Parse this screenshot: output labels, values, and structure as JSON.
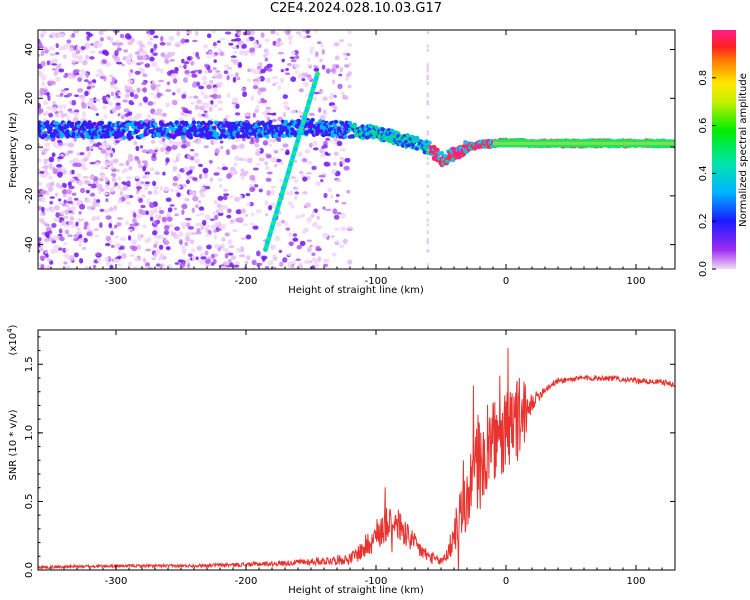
{
  "page": {
    "title": "C2E4.2024.028.10.03.G17"
  },
  "chart_data": [
    {
      "type": "heatmap",
      "title": "C2E4.2024.028.10.03.G17",
      "xlabel": "Height of straight line (km)",
      "ylabel": "Frequency (Hz)",
      "xlim": [
        -360,
        130
      ],
      "ylim": [
        -50,
        48
      ],
      "xticks": [
        -300,
        -200,
        -100,
        0,
        100
      ],
      "xtick_labels": [
        "-300",
        "-200",
        "-100",
        "0",
        "100"
      ],
      "yticks": [
        -40,
        -20,
        0,
        20,
        40
      ],
      "ytick_labels": [
        "-40",
        "-20",
        "0",
        "20",
        "40"
      ],
      "colorbar": {
        "label": "Normalized spectral amplitude",
        "range": [
          0,
          1
        ],
        "ticks": [
          "0.0",
          "0.2",
          "0.4",
          "0.6",
          "0.8"
        ],
        "colormap": "rainbow (violet to red)"
      },
      "features": {
        "ridge": {
          "x": [
            -360,
            -300,
            -200,
            -150,
            -100,
            -80,
            -60,
            -50,
            -40,
            -30,
            -20,
            -10,
            0,
            20,
            60,
            130
          ],
          "y": [
            7,
            7,
            7,
            8,
            6,
            3,
            0,
            -5,
            -3,
            0,
            1,
            1.5,
            2,
            1.5,
            1.5,
            1.5
          ]
        },
        "diagonal_streak": {
          "x": [
            -185,
            -145
          ],
          "y": [
            -42,
            30
          ]
        },
        "noise_extent_x": [
          -360,
          -120
        ]
      },
      "grid": false
    },
    {
      "type": "line",
      "xlabel": "Height of straight line (km)",
      "ylabel": "SNR (10 * v/v)",
      "multiplier": "(x10",
      "multiplier_exp": "4",
      "xlim": [
        -360,
        130
      ],
      "ylim": [
        0,
        1.75
      ],
      "xticks": [
        -300,
        -200,
        -100,
        0,
        100
      ],
      "xtick_labels": [
        "-300",
        "-200",
        "-100",
        "0",
        "100"
      ],
      "yticks": [
        0,
        0.5,
        1.0,
        1.5
      ],
      "ytick_labels": [
        "0.0",
        "0.5",
        "1.0",
        "1.5"
      ],
      "series": [
        {
          "color": "#e8332e",
          "x": [
            -360,
            -300,
            -250,
            -200,
            -170,
            -150,
            -120,
            -110,
            -100,
            -90,
            -80,
            -70,
            -60,
            -50,
            -45,
            -40,
            -35,
            -30,
            -25,
            -20,
            -15,
            -10,
            -5,
            0,
            5,
            10,
            15,
            20,
            30,
            40,
            60,
            80,
            100,
            120,
            130
          ],
          "y": [
            0.02,
            0.03,
            0.03,
            0.04,
            0.05,
            0.06,
            0.08,
            0.15,
            0.25,
            0.38,
            0.3,
            0.18,
            0.1,
            0.06,
            0.12,
            0.25,
            0.4,
            0.5,
            0.7,
            0.85,
            0.8,
            0.95,
            0.9,
            1.0,
            1.05,
            1.1,
            1.15,
            1.22,
            1.32,
            1.38,
            1.4,
            1.4,
            1.38,
            1.37,
            1.35
          ],
          "noise_amp": [
            0.01,
            0.01,
            0.01,
            0.015,
            0.02,
            0.025,
            0.04,
            0.08,
            0.12,
            0.15,
            0.12,
            0.08,
            0.05,
            0.03,
            0.08,
            0.15,
            0.2,
            0.25,
            0.3,
            0.35,
            0.3,
            0.3,
            0.3,
            0.3,
            0.3,
            0.35,
            0.2,
            0.06,
            0.03,
            0.02,
            0.02,
            0.02,
            0.02,
            0.02,
            0.02
          ]
        }
      ],
      "grid": false
    }
  ]
}
